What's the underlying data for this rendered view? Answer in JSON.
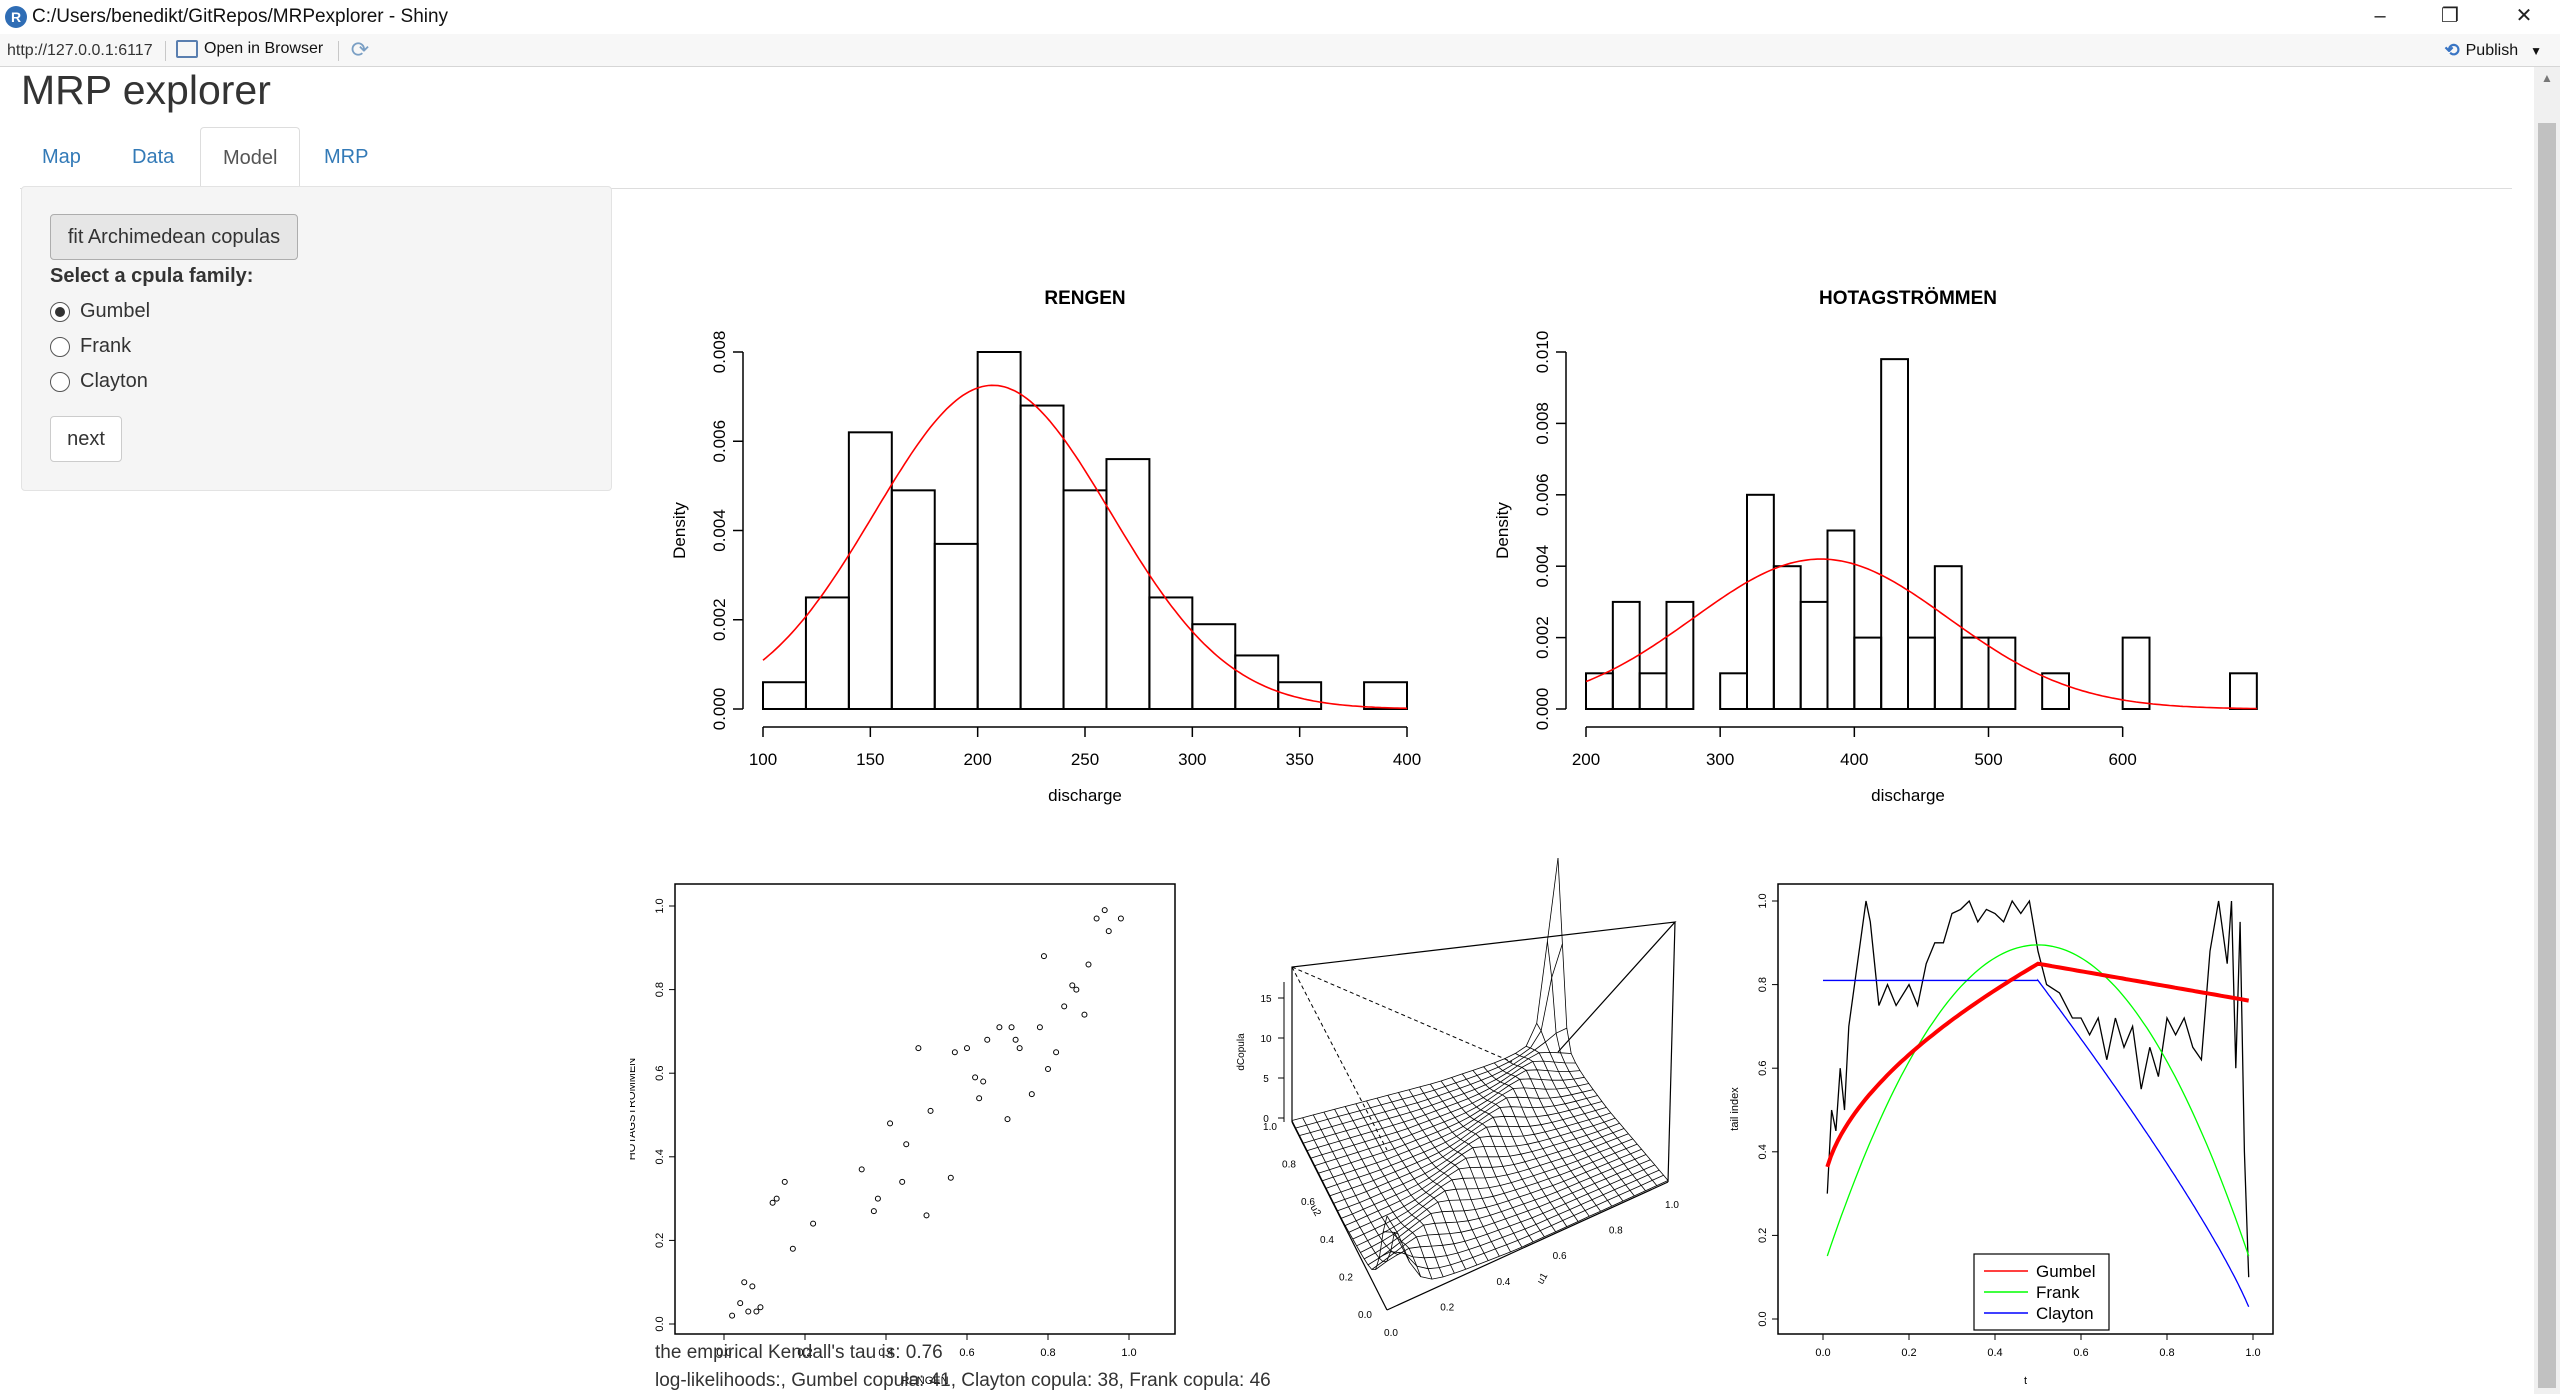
{
  "window": {
    "title": "C:/Users/benedikt/GitRepos/MRPexplorer - Shiny",
    "app_icon": "R",
    "minimize_icon": "–",
    "maximize_icon": "❐",
    "close_icon": "✕"
  },
  "toolbar": {
    "url": "http://127.0.0.1:6117",
    "open_in_browser": "Open in Browser",
    "publish": "Publish"
  },
  "app": {
    "title": "MRP explorer",
    "tabs": [
      {
        "label": "Map",
        "active": false
      },
      {
        "label": "Data",
        "active": false
      },
      {
        "label": "Model",
        "active": true
      },
      {
        "label": "MRP",
        "active": false
      }
    ]
  },
  "sidebar": {
    "fit_button": "fit Archimedean copulas",
    "family_label": "Select a cpula family:",
    "families": [
      {
        "label": "Gumbel",
        "checked": true
      },
      {
        "label": "Frank",
        "checked": false
      },
      {
        "label": "Clayton",
        "checked": false
      }
    ],
    "next_button": "next"
  },
  "stats": {
    "tau": "the empirical Kendall's tau is: 0.76",
    "loglik": "log-likelihoods:, Gumbel copula: 41, Clayton copula: 38, Frank copula: 46"
  },
  "colors": {
    "accent": "#337ab7",
    "density_curve": "#ff0000",
    "gumbel": "#ff0000",
    "frank": "#00ff00",
    "clayton": "#0000ff"
  },
  "chart_data": [
    {
      "type": "bar",
      "subtype": "histogram",
      "title": "RENGEN",
      "xlabel": "discharge",
      "ylabel": "Density",
      "xlim": [
        100,
        400
      ],
      "ylim": [
        0,
        0.008
      ],
      "x_ticks": [
        "100",
        "150",
        "200",
        "250",
        "300",
        "350",
        "400"
      ],
      "y_ticks": [
        "0.000",
        "0.002",
        "0.004",
        "0.006",
        "0.008"
      ],
      "bin_start": 100,
      "bin_width": 20,
      "values": [
        0.0006,
        0.0025,
        0.0062,
        0.0049,
        0.0037,
        0.008,
        0.0068,
        0.0049,
        0.0056,
        0.0025,
        0.0019,
        0.0012,
        0.0006,
        0,
        0.0006
      ],
      "density_curve": {
        "mean": 207,
        "sd": 55
      }
    },
    {
      "type": "bar",
      "subtype": "histogram",
      "title": "HOTAGSTRÖMMEN",
      "xlabel": "discharge",
      "ylabel": "Density",
      "xlim": [
        200,
        680
      ],
      "ylim": [
        0,
        0.01
      ],
      "x_ticks": [
        "200",
        "300",
        "400",
        "500",
        "600"
      ],
      "y_ticks": [
        "0.000",
        "0.002",
        "0.004",
        "0.006",
        "0.008",
        "0.010"
      ],
      "bin_start": 200,
      "bin_width": 20,
      "values": [
        0.001,
        0.003,
        0.001,
        0.003,
        0,
        0.001,
        0.006,
        0.004,
        0.003,
        0.005,
        0.002,
        0.0098,
        0.002,
        0.004,
        0.002,
        0.002,
        0,
        0.001,
        0,
        0,
        0.002,
        0,
        0,
        0,
        0.001
      ],
      "density_curve": {
        "mean": 375,
        "sd": 95
      }
    },
    {
      "type": "scatter",
      "xlabel": "RENGEN",
      "ylabel": "HOTAGSTRÖMMEN",
      "xlim": [
        0,
        1
      ],
      "ylim": [
        0,
        1
      ],
      "x_ticks": [
        "0.0",
        "0.2",
        "0.4",
        "0.6",
        "0.8",
        "1.0"
      ],
      "y_ticks": [
        "0.0",
        "0.2",
        "0.4",
        "0.6",
        "0.8",
        "1.0"
      ],
      "x": [
        0.02,
        0.04,
        0.05,
        0.06,
        0.07,
        0.08,
        0.09,
        0.12,
        0.13,
        0.15,
        0.17,
        0.22,
        0.34,
        0.37,
        0.38,
        0.41,
        0.44,
        0.45,
        0.48,
        0.5,
        0.51,
        0.56,
        0.57,
        0.6,
        0.62,
        0.63,
        0.64,
        0.65,
        0.68,
        0.7,
        0.71,
        0.72,
        0.73,
        0.76,
        0.78,
        0.79,
        0.8,
        0.82,
        0.84,
        0.86,
        0.87,
        0.89,
        0.9,
        0.92,
        0.94,
        0.95,
        0.98
      ],
      "y": [
        0.02,
        0.05,
        0.1,
        0.03,
        0.09,
        0.03,
        0.04,
        0.29,
        0.3,
        0.34,
        0.18,
        0.24,
        0.37,
        0.27,
        0.3,
        0.48,
        0.34,
        0.43,
        0.66,
        0.26,
        0.51,
        0.35,
        0.65,
        0.66,
        0.59,
        0.54,
        0.58,
        0.68,
        0.71,
        0.49,
        0.71,
        0.68,
        0.66,
        0.55,
        0.71,
        0.88,
        0.61,
        0.65,
        0.76,
        0.81,
        0.8,
        0.74,
        0.86,
        0.97,
        0.99,
        0.94,
        0.97
      ]
    },
    {
      "type": "surface",
      "xlabel": "u1",
      "ylabel": "u2",
      "zlabel": "dCopula",
      "z_ticks": [
        "0",
        "5",
        "10",
        "15"
      ],
      "u1_ticks": [
        "0.0",
        "0.2",
        "0.4",
        "0.6",
        "0.8",
        "1.0"
      ],
      "u2_ticks": [
        "0.0",
        "0.2",
        "0.4",
        "0.6",
        "0.8",
        "1.0"
      ]
    },
    {
      "type": "line",
      "xlabel": "t",
      "ylabel": "tail index",
      "xlim": [
        0,
        1
      ],
      "ylim": [
        0,
        1
      ],
      "x_ticks": [
        "0.0",
        "0.2",
        "0.4",
        "0.6",
        "0.8",
        "1.0"
      ],
      "y_ticks": [
        "0.0",
        "0.2",
        "0.4",
        "0.6",
        "0.8",
        "1.0"
      ],
      "legend_position": "bottom",
      "series": [
        {
          "name": "Gumbel",
          "color": "#ff0000"
        },
        {
          "name": "Frank",
          "color": "#00ff00"
        },
        {
          "name": "Clayton",
          "color": "#0000ff"
        }
      ]
    }
  ]
}
